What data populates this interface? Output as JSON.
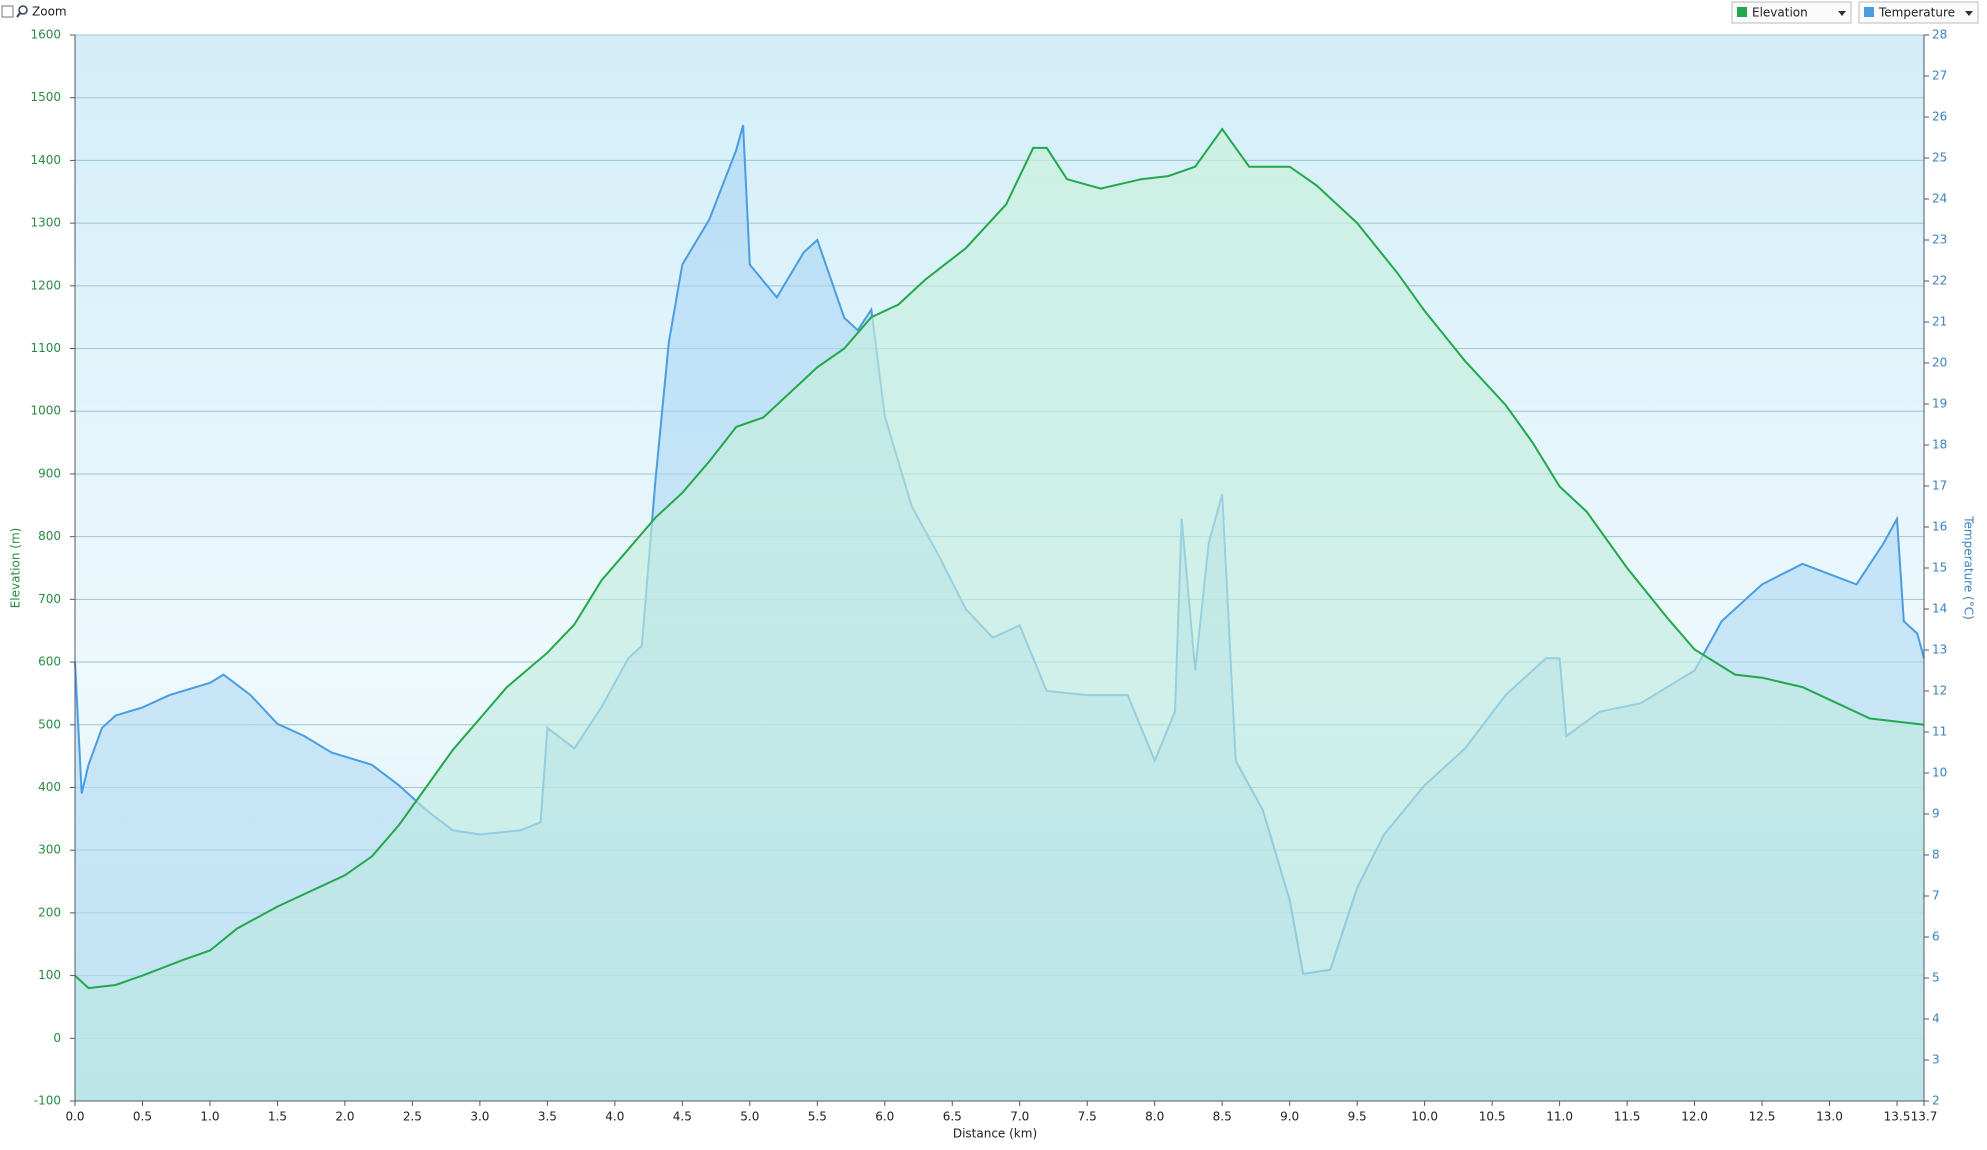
{
  "ui": {
    "zoom_label": "Zoom"
  },
  "chart_data": {
    "type": "area",
    "x_label": "Distance  (km)",
    "y_label": "Elevation (m)",
    "y2_label": "Temperature (°C)",
    "xlim": [
      0,
      13.7
    ],
    "xticks": [
      {
        "value": 0,
        "label": "0.0"
      },
      0.5,
      {
        "value": 1,
        "label": "1.0"
      },
      1.5,
      {
        "value": 2,
        "label": "2.0"
      },
      2.5,
      {
        "value": 3,
        "label": "3.0"
      },
      3.5,
      {
        "value": 4,
        "label": "4.0"
      },
      4.5,
      {
        "value": 5,
        "label": "5.0"
      },
      5.5,
      {
        "value": 6,
        "label": "6.0"
      },
      6.5,
      {
        "value": 7,
        "label": "7.0"
      },
      7.5,
      {
        "value": 8,
        "label": "8.0"
      },
      8.5,
      {
        "value": 9,
        "label": "9.0"
      },
      9.5,
      {
        "value": 10,
        "label": "10.0"
      },
      10.5,
      {
        "value": 11,
        "label": "11.0"
      },
      11.5,
      {
        "value": 12,
        "label": "12.0"
      },
      12.5,
      {
        "value": 13,
        "label": "13.0"
      },
      13.5,
      13.7
    ],
    "ylim": [
      -100,
      1600
    ],
    "yticks": [
      -100,
      0,
      100,
      200,
      300,
      400,
      500,
      600,
      700,
      800,
      900,
      1000,
      1100,
      1200,
      1300,
      1400,
      1500,
      1600
    ],
    "y2lim": [
      2,
      28
    ],
    "y2ticks": [
      2,
      3,
      4,
      5,
      6,
      7,
      8,
      9,
      10,
      11,
      12,
      13,
      14,
      15,
      16,
      17,
      18,
      19,
      20,
      21,
      22,
      23,
      24,
      25,
      26,
      27,
      28
    ],
    "grid": true,
    "series": [
      {
        "name": "Elevation",
        "color": "#22a84a",
        "axis": "y",
        "x": [
          0,
          0.1,
          0.3,
          0.5,
          0.8,
          1.0,
          1.2,
          1.5,
          1.8,
          2.0,
          2.2,
          2.4,
          2.6,
          2.8,
          3.0,
          3.2,
          3.5,
          3.7,
          3.9,
          4.1,
          4.3,
          4.5,
          4.7,
          4.9,
          5.1,
          5.3,
          5.5,
          5.7,
          5.9,
          6.1,
          6.3,
          6.6,
          6.9,
          7.1,
          7.2,
          7.35,
          7.6,
          7.9,
          8.1,
          8.3,
          8.5,
          8.7,
          9.0,
          9.2,
          9.5,
          9.8,
          10.0,
          10.3,
          10.6,
          10.8,
          11.0,
          11.2,
          11.5,
          11.8,
          12.0,
          12.3,
          12.5,
          12.8,
          13.0,
          13.3,
          13.5,
          13.7
        ],
        "values": [
          100,
          80,
          85,
          100,
          125,
          140,
          175,
          210,
          240,
          260,
          290,
          340,
          400,
          460,
          510,
          560,
          615,
          660,
          730,
          780,
          830,
          870,
          920,
          975,
          990,
          1030,
          1070,
          1100,
          1150,
          1170,
          1210,
          1260,
          1330,
          1420,
          1420,
          1370,
          1355,
          1370,
          1375,
          1390,
          1450,
          1390,
          1390,
          1360,
          1300,
          1220,
          1160,
          1080,
          1010,
          950,
          880,
          840,
          750,
          670,
          620,
          580,
          575,
          560,
          540,
          510,
          505,
          500
        ]
      },
      {
        "name": "Temperature",
        "color": "#4a9de0",
        "axis": "y2",
        "x": [
          0,
          0.05,
          0.1,
          0.2,
          0.3,
          0.5,
          0.7,
          1.0,
          1.1,
          1.3,
          1.5,
          1.7,
          1.9,
          2.2,
          2.4,
          2.6,
          2.8,
          3.0,
          3.3,
          3.45,
          3.5,
          3.7,
          3.9,
          4.1,
          4.2,
          4.3,
          4.4,
          4.5,
          4.7,
          4.9,
          4.95,
          5.0,
          5.2,
          5.4,
          5.5,
          5.7,
          5.8,
          5.9,
          6.0,
          6.2,
          6.4,
          6.6,
          6.8,
          7.0,
          7.2,
          7.5,
          7.8,
          8.0,
          8.15,
          8.2,
          8.3,
          8.4,
          8.5,
          8.6,
          8.8,
          9.0,
          9.1,
          9.3,
          9.5,
          9.7,
          10.0,
          10.3,
          10.6,
          10.9,
          11.0,
          11.05,
          11.3,
          11.6,
          12.0,
          12.2,
          12.5,
          12.8,
          13.2,
          13.4,
          13.5,
          13.55,
          13.65,
          13.7
        ],
        "values": [
          12.7,
          9.5,
          10.2,
          11.1,
          11.4,
          11.6,
          11.9,
          12.2,
          12.4,
          11.9,
          11.2,
          10.9,
          10.5,
          10.2,
          9.7,
          9.1,
          8.6,
          8.5,
          8.6,
          8.8,
          11.1,
          10.6,
          11.6,
          12.8,
          13.1,
          17.1,
          20.5,
          22.4,
          23.5,
          25.2,
          25.8,
          22.4,
          21.6,
          22.7,
          23.0,
          21.1,
          20.8,
          21.3,
          18.7,
          16.5,
          15.3,
          14.0,
          13.3,
          13.6,
          12.0,
          11.9,
          11.9,
          10.3,
          11.5,
          16.2,
          12.5,
          15.6,
          16.8,
          10.3,
          9.1,
          6.9,
          5.1,
          5.2,
          7.2,
          8.5,
          9.7,
          10.6,
          11.9,
          12.8,
          12.8,
          10.9,
          11.5,
          11.7,
          12.5,
          13.7,
          14.6,
          15.1,
          14.6,
          15.6,
          16.2,
          13.7,
          13.4,
          12.8
        ]
      }
    ]
  }
}
